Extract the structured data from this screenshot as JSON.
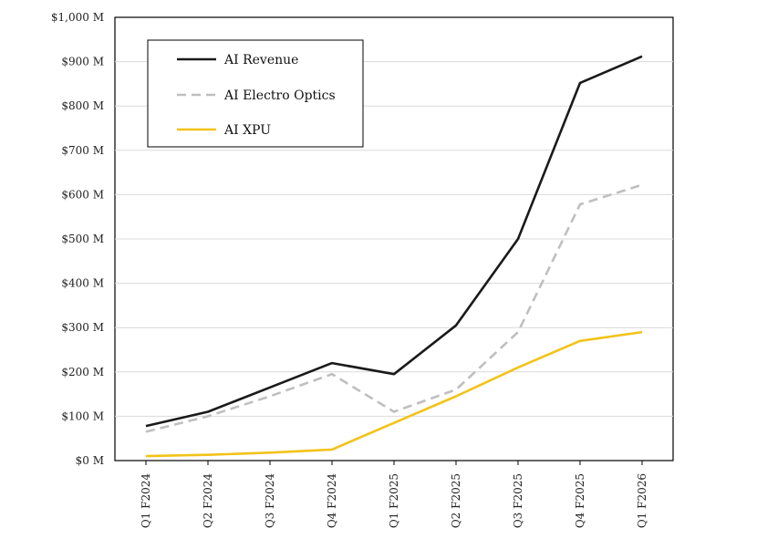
{
  "chart_data": {
    "type": "line",
    "categories": [
      "Q1 F2024",
      "Q2 F2024",
      "Q3 F2024",
      "Q4 F2024",
      "Q1 F2025",
      "Q2 F2025",
      "Q3 F2025",
      "Q4 F2025",
      "Q1 F2026"
    ],
    "ylim": [
      0,
      1000
    ],
    "yticks": [
      0,
      100,
      200,
      300,
      400,
      500,
      600,
      700,
      800,
      900,
      1000
    ],
    "ytick_labels": [
      "$0 M",
      "$100 M",
      "$200 M",
      "$300 M",
      "$400 M",
      "$500 M",
      "$600 M",
      "$700 M",
      "$800 M",
      "$900 M",
      "$1,000 M"
    ],
    "grid": "horizontal",
    "legend_position": "top-left",
    "series": [
      {
        "name": "AI Revenue",
        "color": "#1a1a1a",
        "dash": "solid",
        "values": [
          78,
          110,
          165,
          220,
          195,
          305,
          500,
          852,
          912
        ]
      },
      {
        "name": "AI Electro Optics",
        "color": "#bfbfbf",
        "dash": "dashed",
        "values": [
          65,
          100,
          145,
          195,
          110,
          160,
          290,
          578,
          622
        ]
      },
      {
        "name": "AI XPU",
        "color": "#f2c318",
        "dash": "solid",
        "values": [
          10,
          13,
          18,
          25,
          85,
          145,
          210,
          270,
          290
        ]
      }
    ]
  }
}
